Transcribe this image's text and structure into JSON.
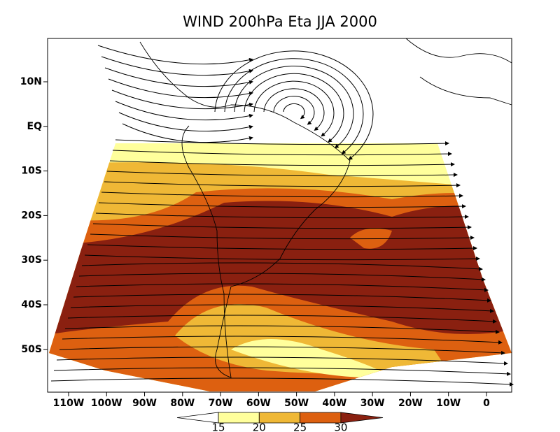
{
  "title": "WIND 200hPa Eta JJA 2000",
  "map": {
    "lat_labels": [
      "10N",
      "EQ",
      "10S",
      "20S",
      "30S",
      "40S",
      "50S"
    ],
    "lon_labels": [
      "110W",
      "100W",
      "90W",
      "80W",
      "70W",
      "60W",
      "50W",
      "40W",
      "30W",
      "20W",
      "10W",
      "0"
    ]
  },
  "colorbar": {
    "levels": [
      15,
      20,
      25,
      30
    ],
    "colors": [
      "#ffffff",
      "#ffff9c",
      "#efb836",
      "#dd6010",
      "#8a2010"
    ]
  }
}
